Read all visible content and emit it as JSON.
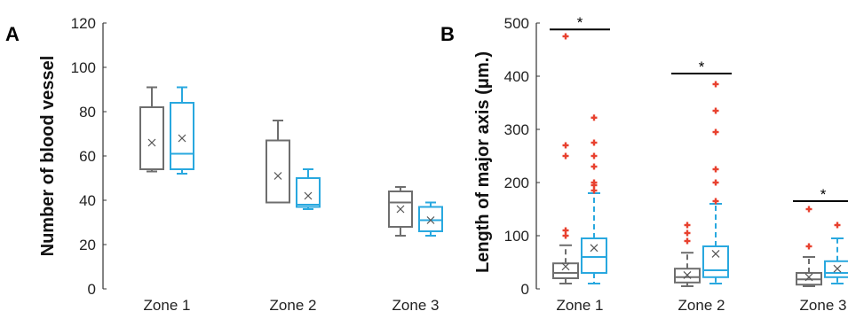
{
  "chart_data": [
    {
      "panel": "A",
      "type": "box",
      "ylabel": "Number of blood vessel",
      "ylim": [
        0,
        120
      ],
      "yticks": [
        0,
        20,
        40,
        60,
        80,
        100,
        120
      ],
      "categories": [
        "Zone 1",
        "Zone 2",
        "Zone 3"
      ],
      "groups": [
        {
          "category": "Zone 1",
          "boxes": [
            {
              "color": "#6e6e6e",
              "whisker_low": 53,
              "q1": 54,
              "median": 54,
              "q3": 82,
              "whisker_high": 91,
              "mean": 66,
              "outliers": []
            },
            {
              "color": "#29a8df",
              "whisker_low": 52,
              "q1": 54,
              "median": 61,
              "q3": 84,
              "whisker_high": 91,
              "mean": 68,
              "outliers": []
            }
          ]
        },
        {
          "category": "Zone 2",
          "boxes": [
            {
              "color": "#6e6e6e",
              "whisker_low": 39,
              "q1": 39,
              "median": 39,
              "q3": 67,
              "whisker_high": 76,
              "mean": 51,
              "outliers": []
            },
            {
              "color": "#29a8df",
              "whisker_low": 36,
              "q1": 37,
              "median": 38,
              "q3": 50,
              "whisker_high": 54,
              "mean": 42,
              "outliers": []
            }
          ]
        },
        {
          "category": "Zone 3",
          "boxes": [
            {
              "color": "#6e6e6e",
              "whisker_low": 24,
              "q1": 28,
              "median": 39,
              "q3": 44,
              "whisker_high": 46,
              "mean": 36,
              "outliers": []
            },
            {
              "color": "#29a8df",
              "whisker_low": 24,
              "q1": 26,
              "median": 31,
              "q3": 37,
              "whisker_high": 39,
              "mean": 31,
              "outliers": []
            }
          ]
        }
      ],
      "significance": []
    },
    {
      "panel": "B",
      "type": "box",
      "ylabel": "Length of major axis (μm.)",
      "ylim": [
        0,
        500
      ],
      "yticks": [
        0,
        100,
        200,
        300,
        400,
        500
      ],
      "categories": [
        "Zone 1",
        "Zone 2",
        "Zone 3"
      ],
      "groups": [
        {
          "category": "Zone 1",
          "boxes": [
            {
              "color": "#6e6e6e",
              "whisker_low": 10,
              "q1": 20,
              "median": 30,
              "q3": 48,
              "whisker_high": 82,
              "mean": 42,
              "outliers": [
                100,
                110,
                250,
                270,
                475
              ]
            },
            {
              "color": "#29a8df",
              "whisker_low": 10,
              "q1": 30,
              "median": 60,
              "q3": 95,
              "whisker_high": 180,
              "mean": 77,
              "outliers": [
                185,
                195,
                200,
                230,
                250,
                275,
                322
              ]
            }
          ]
        },
        {
          "category": "Zone 2",
          "boxes": [
            {
              "color": "#6e6e6e",
              "whisker_low": 5,
              "q1": 12,
              "median": 22,
              "q3": 38,
              "whisker_high": 68,
              "mean": 26,
              "outliers": [
                90,
                105,
                120
              ]
            },
            {
              "color": "#29a8df",
              "whisker_low": 10,
              "q1": 22,
              "median": 35,
              "q3": 80,
              "whisker_high": 160,
              "mean": 66,
              "outliers": [
                165,
                200,
                225,
                295,
                335,
                385
              ]
            }
          ]
        },
        {
          "category": "Zone 3",
          "boxes": [
            {
              "color": "#6e6e6e",
              "whisker_low": 5,
              "q1": 8,
              "median": 18,
              "q3": 30,
              "whisker_high": 60,
              "mean": 22,
              "outliers": [
                80,
                150
              ]
            },
            {
              "color": "#29a8df",
              "whisker_low": 10,
              "q1": 22,
              "median": 30,
              "q3": 52,
              "whisker_high": 95,
              "mean": 38,
              "outliers": [
                120
              ]
            }
          ]
        }
      ],
      "significance": [
        {
          "category": "Zone 1",
          "label": "*",
          "y": 488
        },
        {
          "category": "Zone 2",
          "label": "*",
          "y": 405
        },
        {
          "category": "Zone 3",
          "label": "*",
          "y": 165
        }
      ]
    }
  ]
}
